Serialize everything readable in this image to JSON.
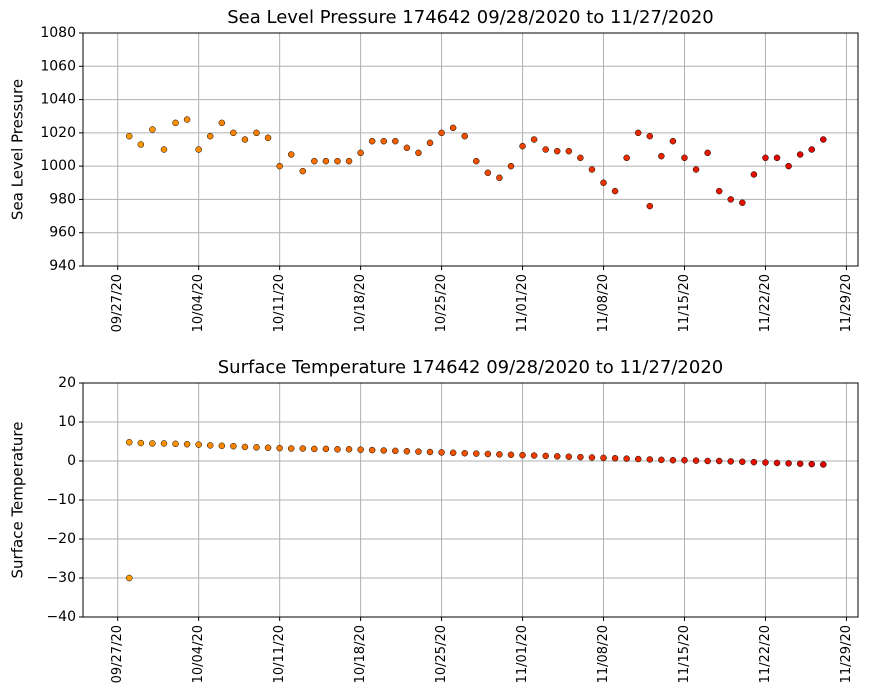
{
  "chart_data": [
    {
      "type": "scatter",
      "title": "Sea Level Pressure 174642  09/28/2020 to 11/27/2020",
      "y_label": "Sea Level Pressure",
      "x": [
        "09/28/20",
        "09/29/20",
        "09/30/20",
        "10/01/20",
        "10/02/20",
        "10/03/20",
        "10/04/20",
        "10/05/20",
        "10/06/20",
        "10/07/20",
        "10/08/20",
        "10/09/20",
        "10/10/20",
        "10/11/20",
        "10/12/20",
        "10/13/20",
        "10/14/20",
        "10/15/20",
        "10/16/20",
        "10/17/20",
        "10/18/20",
        "10/19/20",
        "10/20/20",
        "10/21/20",
        "10/22/20",
        "10/23/20",
        "10/24/20",
        "10/25/20",
        "10/26/20",
        "10/27/20",
        "10/28/20",
        "10/29/20",
        "10/30/20",
        "10/31/20",
        "11/01/20",
        "11/02/20",
        "11/03/20",
        "11/04/20",
        "11/05/20",
        "11/06/20",
        "11/07/20",
        "11/08/20",
        "11/09/20",
        "11/10/20",
        "11/11/20",
        "11/12/20",
        "11/13/20",
        "11/14/20",
        "11/15/20",
        "11/16/20",
        "11/17/20",
        "11/18/20",
        "11/19/20",
        "11/20/20",
        "11/21/20",
        "11/22/20",
        "11/23/20",
        "11/24/20",
        "11/25/20",
        "11/26/20",
        "11/27/20",
        "11/12/20"
      ],
      "values": [
        1018,
        1013,
        1022,
        1010,
        1026,
        1028,
        1010,
        1018,
        1026,
        1020,
        1016,
        1020,
        1017,
        1000,
        1007,
        997,
        1003,
        1003,
        1003,
        1003,
        1008,
        1015,
        1015,
        1015,
        1011,
        1008,
        1014,
        1020,
        1023,
        1018,
        1003,
        996,
        993,
        1000,
        1012,
        1016,
        1010,
        1009,
        1009,
        1005,
        998,
        990,
        985,
        1005,
        1020,
        1018,
        1006,
        1015,
        1005,
        998,
        1008,
        985,
        980,
        978,
        995,
        1005,
        1005,
        1000,
        1007,
        1010,
        1016,
        976
      ],
      "xlim": [
        "09/24/20",
        "11/30/20"
      ],
      "xticks": [
        "09/27/20",
        "10/04/20",
        "10/11/20",
        "10/18/20",
        "10/25/20",
        "11/01/20",
        "11/08/20",
        "11/15/20",
        "11/22/20",
        "11/29/20"
      ],
      "ylim": [
        940,
        1080
      ],
      "yticks": [
        940,
        960,
        980,
        1000,
        1020,
        1040,
        1060,
        1080
      ],
      "grid": true,
      "cmap": [
        "#ff9a00",
        "#e00000"
      ],
      "edgecolor": "#000000"
    },
    {
      "type": "scatter",
      "title": "Surface Temperature 174642  09/28/2020 to 11/27/2020",
      "y_label": "Surface Temperature",
      "x": [
        "09/28/20",
        "09/29/20",
        "09/30/20",
        "10/01/20",
        "10/02/20",
        "10/03/20",
        "10/04/20",
        "10/05/20",
        "10/06/20",
        "10/07/20",
        "10/08/20",
        "10/09/20",
        "10/10/20",
        "10/11/20",
        "10/12/20",
        "10/13/20",
        "10/14/20",
        "10/15/20",
        "10/16/20",
        "10/17/20",
        "10/18/20",
        "10/19/20",
        "10/20/20",
        "10/21/20",
        "10/22/20",
        "10/23/20",
        "10/24/20",
        "10/25/20",
        "10/26/20",
        "10/27/20",
        "10/28/20",
        "10/29/20",
        "10/30/20",
        "10/31/20",
        "11/01/20",
        "11/02/20",
        "11/03/20",
        "11/04/20",
        "11/05/20",
        "11/06/20",
        "11/07/20",
        "11/08/20",
        "11/09/20",
        "11/10/20",
        "11/11/20",
        "11/12/20",
        "11/13/20",
        "11/14/20",
        "11/15/20",
        "11/16/20",
        "11/17/20",
        "11/18/20",
        "11/19/20",
        "11/20/20",
        "11/21/20",
        "11/22/20",
        "11/23/20",
        "11/24/20",
        "11/25/20",
        "11/26/20",
        "11/27/20",
        "09/28/20"
      ],
      "values": [
        4.8,
        4.6,
        4.5,
        4.5,
        4.4,
        4.3,
        4.2,
        4.0,
        3.9,
        3.8,
        3.6,
        3.5,
        3.4,
        3.3,
        3.2,
        3.2,
        3.1,
        3.1,
        3.0,
        3.0,
        2.9,
        2.8,
        2.7,
        2.6,
        2.5,
        2.4,
        2.3,
        2.2,
        2.1,
        2.0,
        1.9,
        1.8,
        1.7,
        1.6,
        1.5,
        1.4,
        1.3,
        1.2,
        1.1,
        1.0,
        0.9,
        0.8,
        0.7,
        0.6,
        0.5,
        0.4,
        0.3,
        0.2,
        0.2,
        0.1,
        0.0,
        0.0,
        -0.1,
        -0.2,
        -0.3,
        -0.4,
        -0.5,
        -0.6,
        -0.7,
        -0.8,
        -0.9,
        -30
      ],
      "xlim": [
        "09/24/20",
        "11/30/20"
      ],
      "xticks": [
        "09/27/20",
        "10/04/20",
        "10/11/20",
        "10/18/20",
        "10/25/20",
        "11/01/20",
        "11/08/20",
        "11/15/20",
        "11/22/20",
        "11/29/20"
      ],
      "ylim": [
        -40,
        20
      ],
      "yticks": [
        {
          "value": -40,
          "label": "−40"
        },
        {
          "value": -30,
          "label": "−30"
        },
        {
          "value": -20,
          "label": "−20"
        },
        {
          "value": -10,
          "label": "−10"
        },
        0,
        10,
        20
      ],
      "grid": true,
      "cmap": [
        "#ff9a00",
        "#e00000"
      ],
      "edgecolor": "#000000"
    }
  ]
}
